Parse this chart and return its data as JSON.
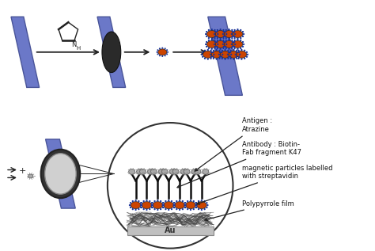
{
  "bg_color": "#ffffff",
  "panel_color": "#6b78c8",
  "panel_edge": "#4a5599",
  "ellipse_dark": "#2a2a2a",
  "ellipse_light": "#d0d0d0",
  "orange_color": "#cc4400",
  "blue_ring": "#1a3399",
  "navy": "#111133",
  "gray_particle": "#aaaaaa",
  "au_color": "#c0c0c0",
  "pyrrole_line": "#444444",
  "arrow_color": "#222222",
  "text_color": "#111111",
  "labels": {
    "antigen": "Antigen :\nAtrazine",
    "antibody": "Antibody : Biotin-\nFab fragment K47",
    "magnetic": "magnetic particles labelled\nwith streptavidin",
    "polypyrrole": "Polypyrrole film",
    "au": "Au"
  }
}
